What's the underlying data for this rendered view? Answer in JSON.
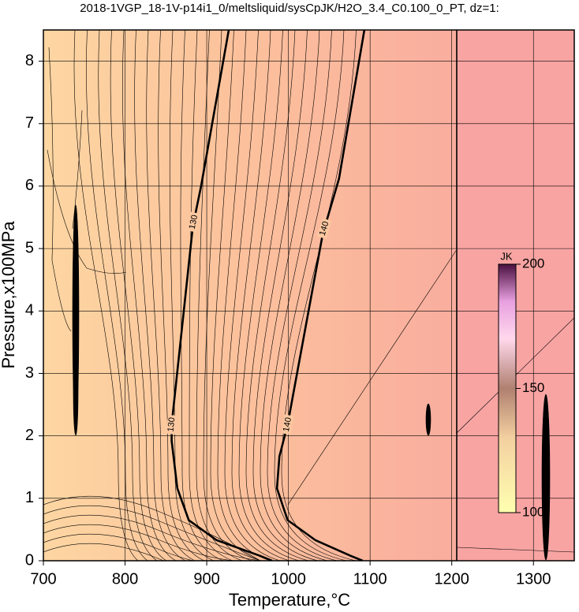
{
  "chart_data": {
    "type": "contour",
    "title": "2018-1VGP_18-1V-p14i1_0/meltsliquid/sysCpJK/H2O_3.4_C0.100_0_PT, dz=1:",
    "xlabel": "Temperature,°C",
    "ylabel": "Pressure,x100MPa",
    "xlim": [
      700,
      1350
    ],
    "ylim": [
      0,
      8.5
    ],
    "xticks": [
      700,
      800,
      900,
      1000,
      1100,
      1200,
      1300
    ],
    "yticks": [
      0,
      1,
      2,
      3,
      4,
      5,
      6,
      7,
      8
    ],
    "grid": true,
    "contours": [
      {
        "level": 130,
        "color": "#000000",
        "x": [
          927,
          893,
          883,
          857,
          857,
          864,
          878,
          912,
          965,
          980
        ],
        "y": [
          8.5,
          5.99,
          5.36,
          2.18,
          1.92,
          1.16,
          0.65,
          0.33,
          0.08,
          0
        ]
      },
      {
        "level": 140,
        "color": "#000000",
        "x": [
          1093,
          1062,
          1042,
          999,
          989,
          986,
          999,
          1033,
          1076,
          1091
        ],
        "y": [
          8.5,
          6.12,
          5.23,
          2.18,
          1.67,
          1.16,
          0.65,
          0.33,
          0.08,
          0
        ]
      }
    ],
    "colorbar": {
      "label": "JK",
      "lim": [
        100,
        200
      ],
      "ticks": [
        100,
        150,
        200
      ]
    }
  }
}
